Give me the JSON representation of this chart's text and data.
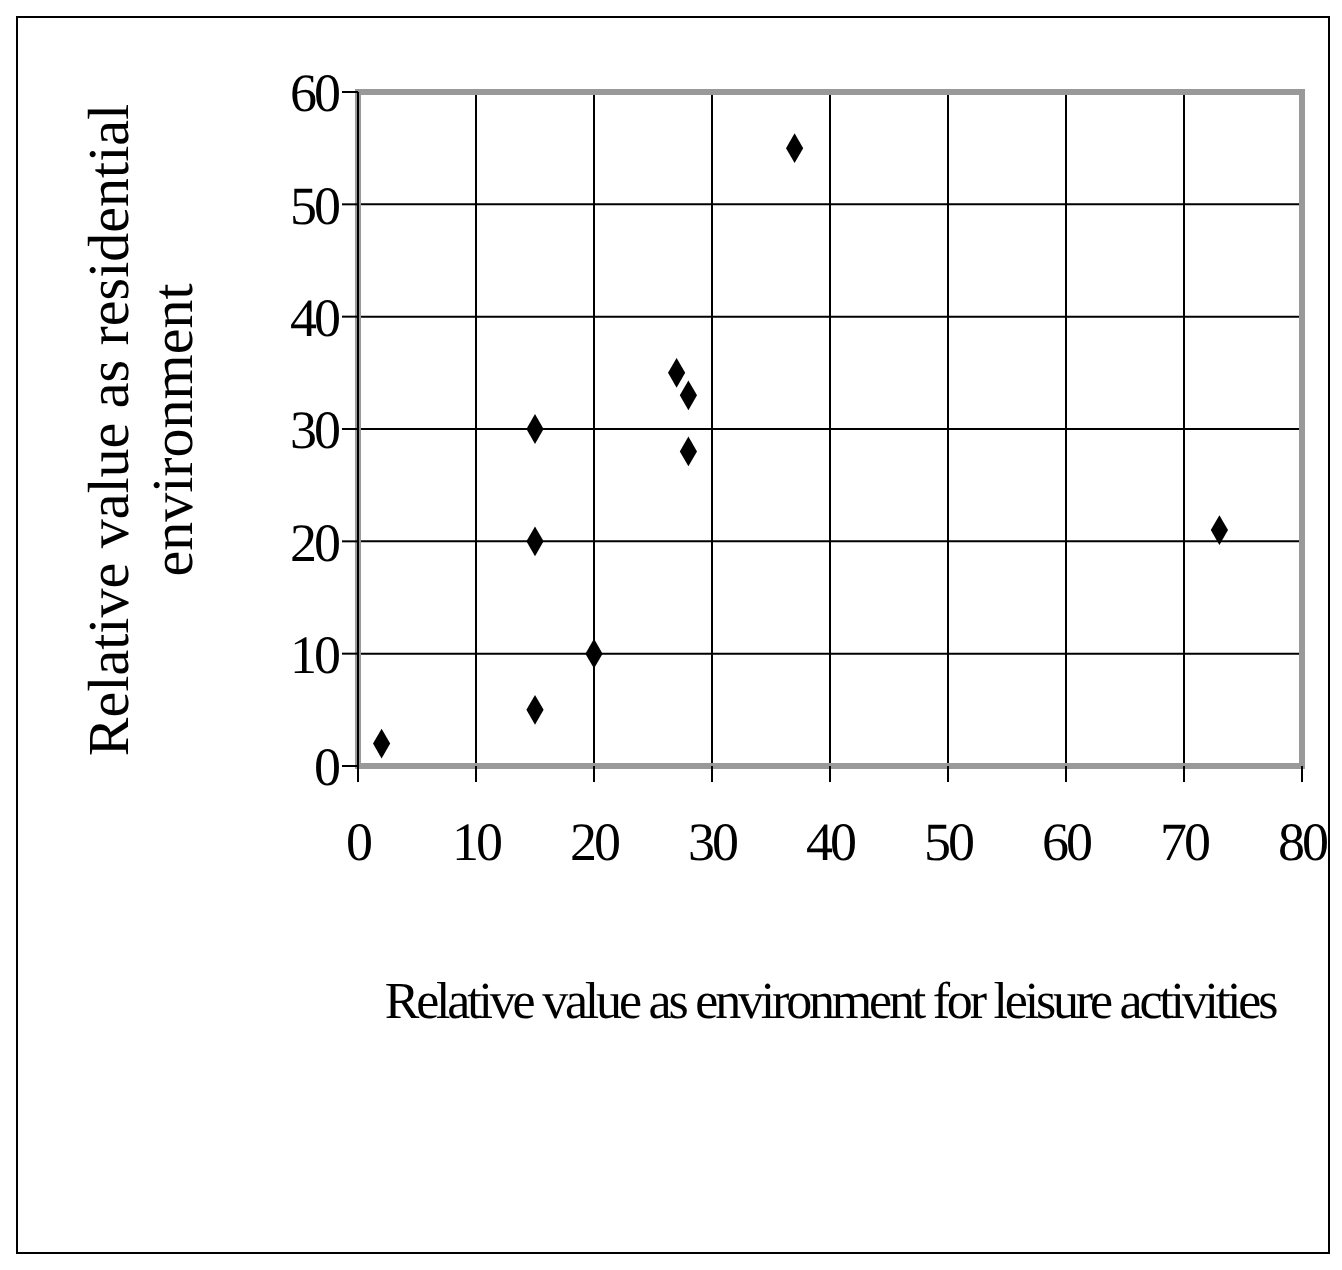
{
  "chart_data": {
    "type": "scatter",
    "xlabel": "Relative value as environment for leisure activities",
    "ylabel": "Relative value as residential environment",
    "x": [
      2,
      15,
      20,
      15,
      15,
      27,
      28,
      28,
      37,
      73
    ],
    "values": [
      2,
      5,
      10,
      20,
      30,
      35,
      33,
      28,
      55,
      21
    ],
    "color": "#000000",
    "marker": "diamond",
    "xlim": [
      0,
      80
    ],
    "xticks": [
      0,
      10,
      20,
      30,
      40,
      50,
      60,
      70,
      80
    ],
    "ylim": [
      0,
      60
    ],
    "yticks": [
      0,
      10,
      20,
      30,
      40,
      50,
      60
    ],
    "grid": true
  }
}
